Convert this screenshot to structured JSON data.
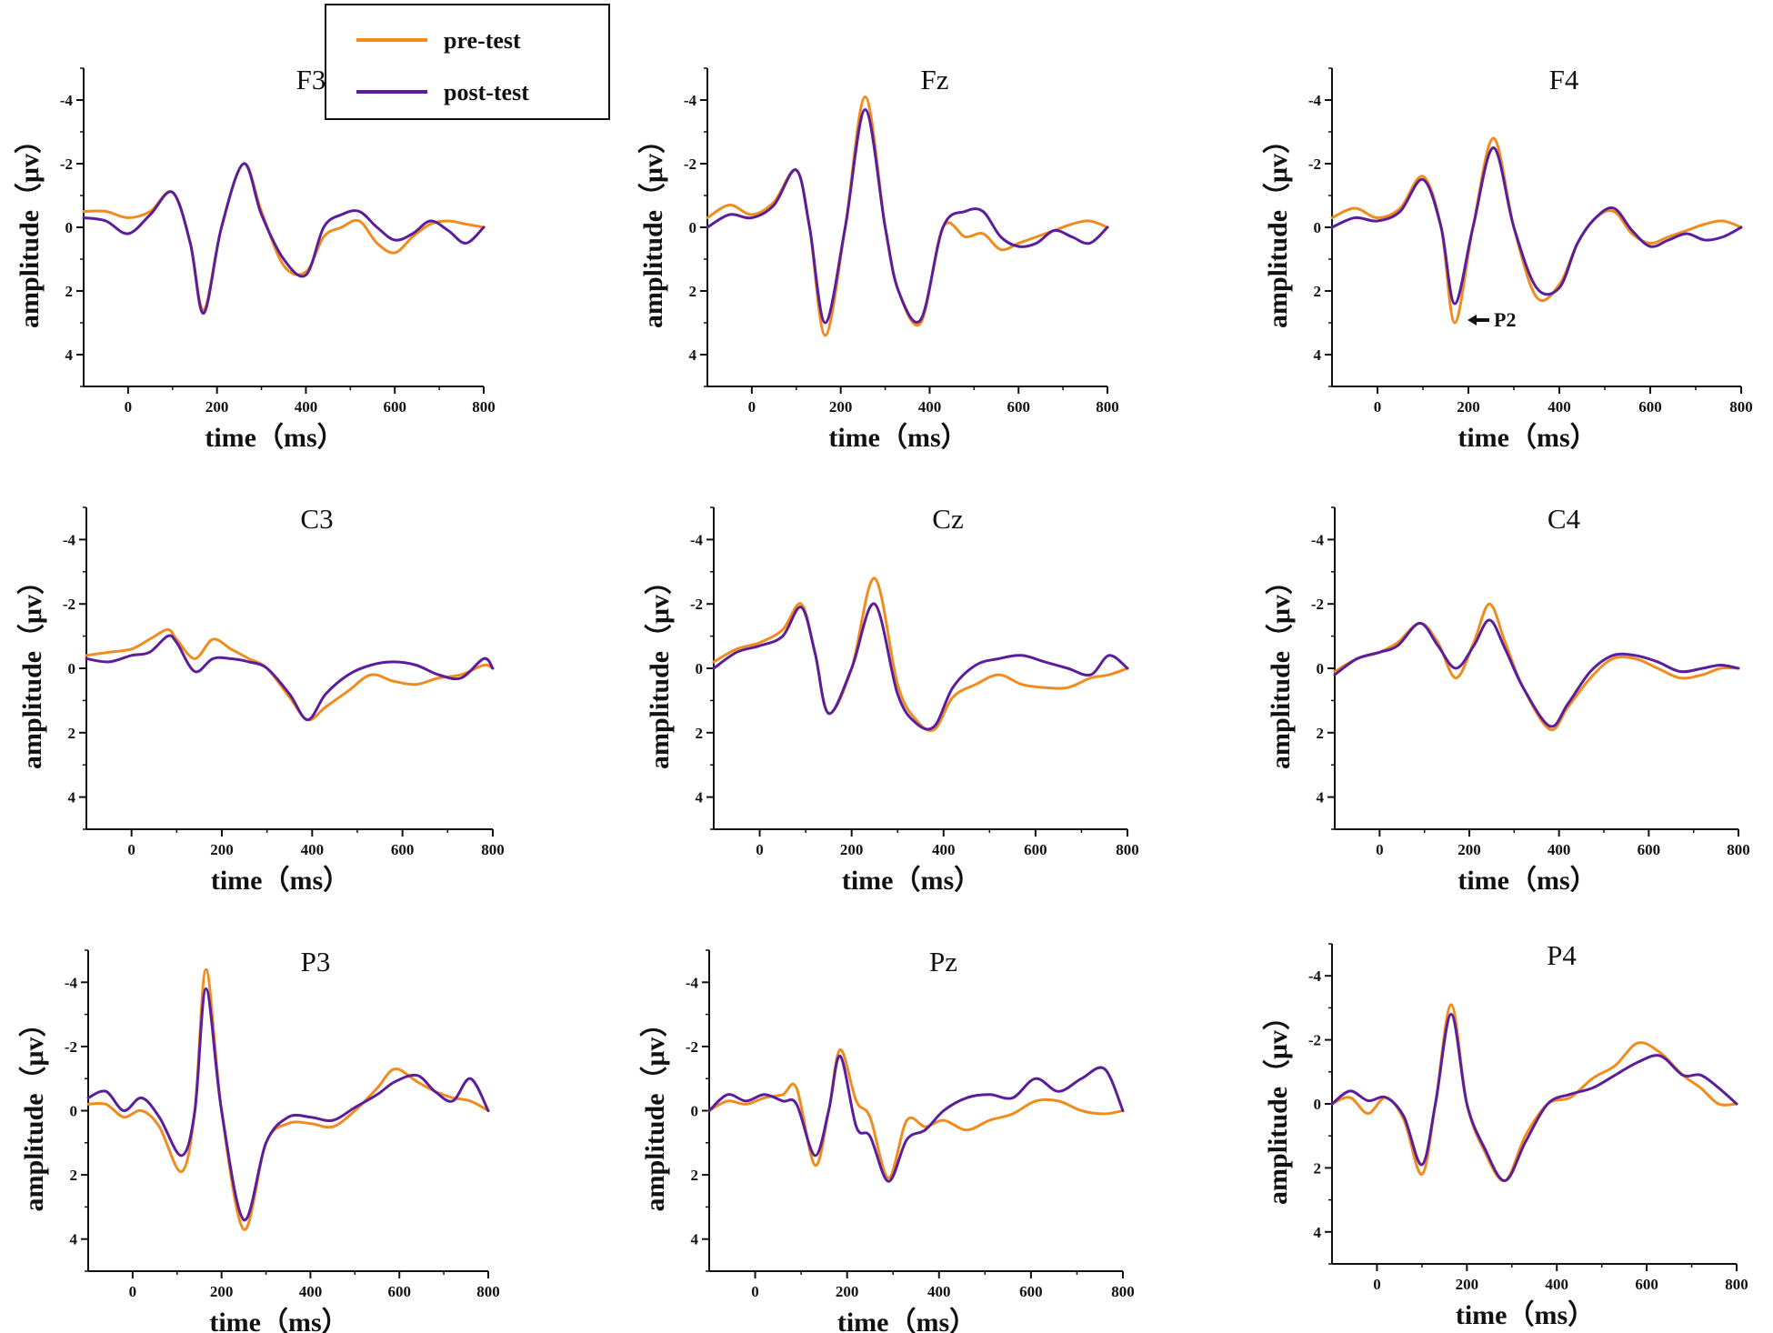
{
  "colors": {
    "pre": "#f08c1e",
    "post": "#5a1e9b",
    "axis": "#111111"
  },
  "legend": {
    "entries": [
      "pre-test",
      "post-test"
    ]
  },
  "annotation": {
    "label": "P2",
    "panel": "F4",
    "x": 170,
    "y": 3.0
  },
  "chart_data": [
    {
      "type": "line",
      "title": "F3",
      "xlabel": "time（ms）",
      "ylabel": "amplitude（μv）",
      "xlim": [
        -100,
        800
      ],
      "ylim": [
        -5,
        5
      ],
      "y_inverted": true,
      "xticks": [
        0,
        200,
        400,
        600,
        800
      ],
      "yticks": [
        -4,
        -2,
        0,
        2,
        4
      ],
      "x": [
        -100,
        -50,
        0,
        50,
        100,
        140,
        170,
        210,
        260,
        300,
        350,
        400,
        440,
        480,
        520,
        560,
        600,
        640,
        680,
        720,
        760,
        800
      ],
      "series": [
        {
          "name": "pre-test",
          "values": [
            -0.5,
            -0.5,
            -0.3,
            -0.5,
            -1.1,
            0.5,
            2.6,
            0.0,
            -2.0,
            -0.5,
            1.2,
            1.4,
            0.3,
            0.0,
            -0.2,
            0.5,
            0.8,
            0.3,
            -0.1,
            -0.2,
            -0.1,
            0.0
          ]
        },
        {
          "name": "post-test",
          "values": [
            -0.3,
            -0.2,
            0.2,
            -0.4,
            -1.1,
            0.5,
            2.7,
            0.0,
            -2.0,
            -0.4,
            1.0,
            1.5,
            0.0,
            -0.4,
            -0.5,
            0.0,
            0.4,
            0.2,
            -0.2,
            0.1,
            0.5,
            0.0
          ]
        }
      ]
    },
    {
      "type": "line",
      "title": "Fz",
      "xlabel": "time（ms）",
      "ylabel": "amplitude（μv）",
      "xlim": [
        -100,
        800
      ],
      "ylim": [
        -5,
        5
      ],
      "y_inverted": true,
      "xticks": [
        0,
        200,
        400,
        600,
        800
      ],
      "yticks": [
        -4,
        -2,
        0,
        2,
        4
      ],
      "x": [
        -100,
        -50,
        0,
        50,
        100,
        130,
        165,
        210,
        255,
        300,
        330,
        380,
        430,
        480,
        520,
        560,
        600,
        640,
        680,
        720,
        760,
        800
      ],
      "series": [
        {
          "name": "pre-test",
          "values": [
            -0.3,
            -0.7,
            -0.4,
            -0.8,
            -1.8,
            0.0,
            3.4,
            0.0,
            -4.1,
            0.0,
            2.0,
            3.0,
            0.0,
            0.3,
            0.2,
            0.7,
            0.5,
            0.3,
            0.1,
            -0.1,
            -0.2,
            0.0
          ]
        },
        {
          "name": "post-test",
          "values": [
            0.0,
            -0.4,
            -0.3,
            -0.7,
            -1.8,
            0.0,
            3.0,
            0.0,
            -3.7,
            0.0,
            2.0,
            2.9,
            0.0,
            -0.5,
            -0.5,
            0.3,
            0.6,
            0.5,
            0.1,
            0.3,
            0.5,
            0.0
          ]
        }
      ]
    },
    {
      "type": "line",
      "title": "F4",
      "xlabel": "time（ms）",
      "ylabel": "amplitude（μv）",
      "xlim": [
        -100,
        800
      ],
      "ylim": [
        -5,
        5
      ],
      "y_inverted": true,
      "xticks": [
        0,
        200,
        400,
        600,
        800
      ],
      "yticks": [
        -4,
        -2,
        0,
        2,
        4
      ],
      "x": [
        -100,
        -50,
        0,
        50,
        100,
        140,
        170,
        210,
        255,
        300,
        350,
        400,
        440,
        480,
        520,
        560,
        600,
        640,
        680,
        720,
        760,
        800
      ],
      "series": [
        {
          "name": "pre-test",
          "values": [
            -0.3,
            -0.6,
            -0.3,
            -0.6,
            -1.6,
            0.0,
            3.0,
            0.0,
            -2.8,
            0.0,
            2.2,
            1.8,
            0.5,
            -0.3,
            -0.5,
            0.2,
            0.5,
            0.3,
            0.1,
            -0.1,
            -0.2,
            0.0
          ]
        },
        {
          "name": "post-test",
          "values": [
            0.0,
            -0.3,
            -0.2,
            -0.5,
            -1.5,
            0.0,
            2.4,
            0.0,
            -2.5,
            0.0,
            1.9,
            1.9,
            0.5,
            -0.3,
            -0.6,
            0.1,
            0.6,
            0.4,
            0.2,
            0.4,
            0.3,
            0.0
          ]
        }
      ]
    },
    {
      "type": "line",
      "title": "C3",
      "xlabel": "time（ms）",
      "ylabel": "amplitude（μv）",
      "xlim": [
        -100,
        800
      ],
      "ylim": [
        -5,
        5
      ],
      "y_inverted": true,
      "xticks": [
        0,
        200,
        400,
        600,
        800
      ],
      "yticks": [
        -4,
        -2,
        0,
        2,
        4
      ],
      "x": [
        -100,
        -50,
        0,
        40,
        80,
        100,
        140,
        180,
        220,
        260,
        300,
        350,
        390,
        430,
        480,
        530,
        580,
        630,
        680,
        730,
        780,
        800
      ],
      "series": [
        {
          "name": "pre-test",
          "values": [
            -0.4,
            -0.5,
            -0.6,
            -0.9,
            -1.2,
            -0.9,
            -0.3,
            -0.9,
            -0.6,
            -0.3,
            0.0,
            0.9,
            1.6,
            1.2,
            0.7,
            0.2,
            0.4,
            0.5,
            0.3,
            0.2,
            -0.1,
            0.0
          ]
        },
        {
          "name": "post-test",
          "values": [
            -0.3,
            -0.2,
            -0.4,
            -0.5,
            -1.0,
            -0.8,
            0.1,
            -0.3,
            -0.3,
            -0.2,
            0.0,
            0.8,
            1.6,
            0.8,
            0.2,
            -0.1,
            -0.2,
            -0.1,
            0.2,
            0.3,
            -0.3,
            0.0
          ]
        }
      ]
    },
    {
      "type": "line",
      "title": "Cz",
      "xlabel": "time（ms）",
      "ylabel": "amplitude（μv）",
      "xlim": [
        -100,
        800
      ],
      "ylim": [
        -5,
        5
      ],
      "y_inverted": true,
      "xticks": [
        0,
        200,
        400,
        600,
        800
      ],
      "yticks": [
        -4,
        -2,
        0,
        2,
        4
      ],
      "x": [
        -100,
        -50,
        0,
        50,
        90,
        120,
        150,
        200,
        250,
        300,
        340,
        380,
        420,
        470,
        520,
        570,
        620,
        670,
        720,
        760,
        800
      ],
      "series": [
        {
          "name": "pre-test",
          "values": [
            -0.2,
            -0.6,
            -0.8,
            -1.2,
            -2.0,
            -0.5,
            1.4,
            0.0,
            -2.8,
            0.5,
            1.6,
            1.9,
            0.9,
            0.5,
            0.2,
            0.5,
            0.6,
            0.6,
            0.3,
            0.2,
            0.0
          ]
        },
        {
          "name": "post-test",
          "values": [
            0.0,
            -0.5,
            -0.7,
            -1.0,
            -1.9,
            -0.5,
            1.4,
            0.0,
            -2.0,
            0.8,
            1.7,
            1.8,
            0.6,
            -0.1,
            -0.3,
            -0.4,
            -0.2,
            0.0,
            0.2,
            -0.4,
            0.0
          ]
        }
      ]
    },
    {
      "type": "line",
      "title": "C4",
      "xlabel": "time（ms）",
      "ylabel": "amplitude（μv）",
      "xlim": [
        -100,
        800
      ],
      "ylim": [
        -5,
        5
      ],
      "y_inverted": true,
      "xticks": [
        0,
        200,
        400,
        600,
        800
      ],
      "yticks": [
        -4,
        -2,
        0,
        2,
        4
      ],
      "x": [
        -100,
        -50,
        0,
        40,
        90,
        130,
        170,
        210,
        245,
        280,
        320,
        380,
        420,
        470,
        520,
        570,
        620,
        670,
        720,
        760,
        800
      ],
      "series": [
        {
          "name": "pre-test",
          "values": [
            0.1,
            -0.3,
            -0.5,
            -0.8,
            -1.4,
            -0.8,
            0.3,
            -0.8,
            -2.0,
            -0.8,
            0.6,
            1.9,
            1.2,
            0.3,
            -0.3,
            -0.3,
            0.0,
            0.3,
            0.2,
            0.0,
            0.0
          ]
        },
        {
          "name": "post-test",
          "values": [
            0.2,
            -0.3,
            -0.5,
            -0.7,
            -1.4,
            -0.7,
            0.0,
            -0.7,
            -1.5,
            -0.6,
            0.6,
            1.8,
            1.1,
            0.1,
            -0.4,
            -0.4,
            -0.2,
            0.1,
            0.0,
            -0.1,
            0.0
          ]
        }
      ]
    },
    {
      "type": "line",
      "title": "P3",
      "xlabel": "time（ms）",
      "ylabel": "amplitude（μv）",
      "xlim": [
        -100,
        800
      ],
      "ylim": [
        -5,
        5
      ],
      "y_inverted": true,
      "xticks": [
        0,
        200,
        400,
        600,
        800
      ],
      "yticks": [
        -4,
        -2,
        0,
        2,
        4
      ],
      "x": [
        -100,
        -60,
        -20,
        20,
        60,
        110,
        140,
        165,
        200,
        250,
        300,
        350,
        400,
        450,
        500,
        550,
        590,
        640,
        680,
        720,
        760,
        800
      ],
      "series": [
        {
          "name": "pre-test",
          "values": [
            -0.2,
            -0.2,
            0.2,
            0.0,
            0.5,
            1.9,
            0.0,
            -4.4,
            0.0,
            3.7,
            1.0,
            0.4,
            0.4,
            0.5,
            0.0,
            -0.7,
            -1.3,
            -0.9,
            -0.6,
            -0.4,
            -0.3,
            0.0
          ]
        },
        {
          "name": "post-test",
          "values": [
            -0.4,
            -0.6,
            0.0,
            -0.4,
            0.2,
            1.4,
            0.0,
            -3.8,
            0.0,
            3.4,
            1.0,
            0.2,
            0.2,
            0.3,
            -0.1,
            -0.5,
            -0.9,
            -1.1,
            -0.6,
            -0.3,
            -1.0,
            0.0
          ]
        }
      ]
    },
    {
      "type": "line",
      "title": "Pz",
      "xlabel": "time（ms）",
      "ylabel": "amplitude（μv）",
      "xlim": [
        -100,
        800
      ],
      "ylim": [
        -5,
        5
      ],
      "y_inverted": true,
      "xticks": [
        0,
        200,
        400,
        600,
        800
      ],
      "yticks": [
        -4,
        -2,
        0,
        2,
        4
      ],
      "x": [
        -100,
        -60,
        -20,
        20,
        60,
        90,
        130,
        160,
        185,
        220,
        250,
        290,
        330,
        370,
        410,
        460,
        510,
        560,
        610,
        660,
        710,
        760,
        800
      ],
      "series": [
        {
          "name": "pre-test",
          "values": [
            0.0,
            -0.3,
            -0.2,
            -0.4,
            -0.5,
            -0.7,
            1.7,
            0.0,
            -1.9,
            -0.3,
            0.2,
            2.1,
            0.3,
            0.5,
            0.3,
            0.6,
            0.3,
            0.1,
            -0.3,
            -0.3,
            0.0,
            0.1,
            0.0
          ]
        },
        {
          "name": "post-test",
          "values": [
            0.0,
            -0.5,
            -0.3,
            -0.5,
            -0.3,
            -0.2,
            1.4,
            0.0,
            -1.7,
            0.5,
            0.8,
            2.2,
            0.9,
            0.6,
            0.0,
            -0.4,
            -0.5,
            -0.4,
            -1.0,
            -0.6,
            -1.0,
            -1.3,
            0.0
          ]
        }
      ]
    },
    {
      "type": "line",
      "title": "P4",
      "xlabel": "time（ms）",
      "ylabel": "amplitude（μv）",
      "xlim": [
        -100,
        800
      ],
      "ylim": [
        -5,
        5
      ],
      "y_inverted": true,
      "xticks": [
        0,
        200,
        400,
        600,
        800
      ],
      "yticks": [
        -4,
        -2,
        0,
        2,
        4
      ],
      "x": [
        -100,
        -60,
        -20,
        20,
        60,
        100,
        130,
        165,
        200,
        240,
        285,
        330,
        380,
        430,
        480,
        530,
        580,
        630,
        680,
        720,
        760,
        800
      ],
      "series": [
        {
          "name": "pre-test",
          "values": [
            0.0,
            -0.2,
            0.3,
            -0.2,
            0.5,
            2.2,
            0.0,
            -3.1,
            0.0,
            1.5,
            2.4,
            1.0,
            0.0,
            -0.2,
            -0.8,
            -1.2,
            -1.9,
            -1.6,
            -0.9,
            -0.5,
            0.0,
            0.0
          ]
        },
        {
          "name": "post-test",
          "values": [
            0.0,
            -0.4,
            -0.1,
            -0.2,
            0.4,
            1.9,
            0.0,
            -2.8,
            0.0,
            1.4,
            2.4,
            1.2,
            0.0,
            -0.3,
            -0.5,
            -0.9,
            -1.3,
            -1.5,
            -0.9,
            -0.9,
            -0.5,
            0.0
          ]
        }
      ]
    }
  ]
}
